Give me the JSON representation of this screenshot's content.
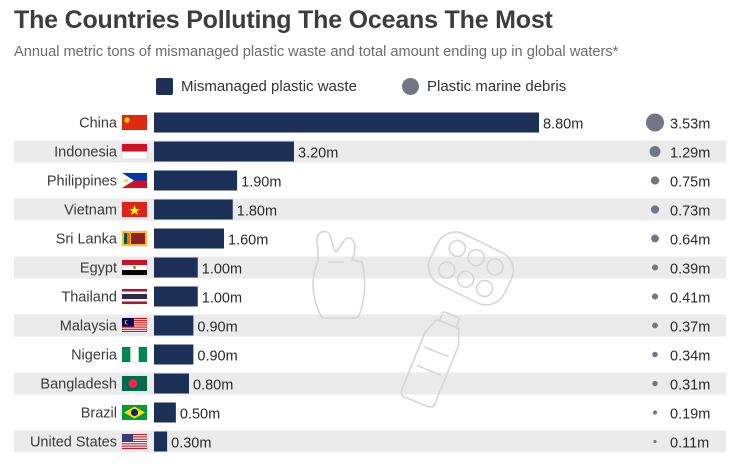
{
  "title": "The Countries Polluting The Oceans The Most",
  "subtitle": "Annual metric tons of mismanaged plastic waste and total amount ending up in global waters*",
  "colors": {
    "bar": "#1c2f56",
    "dot": "#6f7782",
    "row_shade": "#ebebeb",
    "background": "#ffffff"
  },
  "chart_data": {
    "type": "bar",
    "orientation": "horizontal",
    "legend_position": "top-center",
    "categories": [
      "China",
      "Indonesia",
      "Philippines",
      "Vietnam",
      "Sri Lanka",
      "Egypt",
      "Thailand",
      "Malaysia",
      "Nigeria",
      "Bangladesh",
      "Brazil",
      "United States"
    ],
    "series": [
      {
        "name": "Mismanaged plastic waste",
        "marker": "bar",
        "values": [
          8.8,
          3.2,
          1.9,
          1.8,
          1.6,
          1.0,
          1.0,
          0.9,
          0.9,
          0.8,
          0.5,
          0.3
        ],
        "labels": [
          "8.80m",
          "3.20m",
          "1.90m",
          "1.80m",
          "1.60m",
          "1.00m",
          "1.00m",
          "0.90m",
          "0.90m",
          "0.80m",
          "0.50m",
          "0.30m"
        ]
      },
      {
        "name": "Plastic marine debris",
        "marker": "dot",
        "values": [
          3.53,
          1.29,
          0.75,
          0.73,
          0.64,
          0.39,
          0.41,
          0.37,
          0.34,
          0.31,
          0.19,
          0.11
        ],
        "labels": [
          "3.53m",
          "1.29m",
          "0.75m",
          "0.73m",
          "0.64m",
          "0.39m",
          "0.41m",
          "0.37m",
          "0.34m",
          "0.31m",
          "0.19m",
          "0.11m"
        ]
      }
    ],
    "flags": [
      "china-flag-icon",
      "indonesia-flag-icon",
      "philippines-flag-icon",
      "vietnam-flag-icon",
      "sri-lanka-flag-icon",
      "egypt-flag-icon",
      "thailand-flag-icon",
      "malaysia-flag-icon",
      "nigeria-flag-icon",
      "bangladesh-flag-icon",
      "brazil-flag-icon",
      "usa-flag-icon"
    ]
  }
}
